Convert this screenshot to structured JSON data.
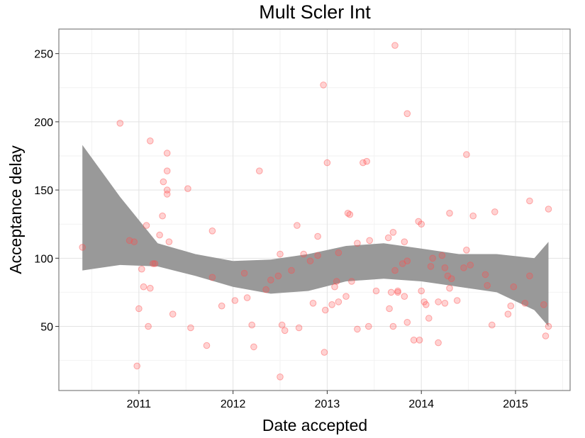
{
  "chart_data": {
    "type": "scatter",
    "title": "Mult Scler Int",
    "xlabel": "Date accepted",
    "ylabel": "Acceptance delay",
    "xlim": [
      2010.15,
      2015.58
    ],
    "ylim": [
      3,
      268
    ],
    "x_ticks": [
      2011,
      2012,
      2013,
      2014,
      2015
    ],
    "y_ticks": [
      50,
      100,
      150,
      200,
      250
    ],
    "grid": true,
    "point_color": "#ff4d4d",
    "band_color": "#999999",
    "points": [
      [
        2010.4,
        108
      ],
      [
        2010.8,
        199
      ],
      [
        2010.9,
        113
      ],
      [
        2010.95,
        112
      ],
      [
        2010.98,
        21
      ],
      [
        2011.0,
        63
      ],
      [
        2011.03,
        92
      ],
      [
        2011.05,
        79
      ],
      [
        2011.08,
        124
      ],
      [
        2011.1,
        50
      ],
      [
        2011.12,
        186
      ],
      [
        2011.12,
        78
      ],
      [
        2011.15,
        96
      ],
      [
        2011.17,
        96
      ],
      [
        2011.22,
        117
      ],
      [
        2011.25,
        131
      ],
      [
        2011.26,
        156
      ],
      [
        2011.3,
        177
      ],
      [
        2011.3,
        164
      ],
      [
        2011.3,
        150
      ],
      [
        2011.3,
        147
      ],
      [
        2011.32,
        112
      ],
      [
        2011.36,
        59
      ],
      [
        2011.52,
        151
      ],
      [
        2011.55,
        49
      ],
      [
        2011.72,
        36
      ],
      [
        2011.78,
        120
      ],
      [
        2011.78,
        86
      ],
      [
        2011.88,
        65
      ],
      [
        2012.02,
        69
      ],
      [
        2012.12,
        89
      ],
      [
        2012.15,
        71
      ],
      [
        2012.2,
        51
      ],
      [
        2012.22,
        35
      ],
      [
        2012.28,
        164
      ],
      [
        2012.35,
        77
      ],
      [
        2012.4,
        84
      ],
      [
        2012.48,
        87
      ],
      [
        2012.5,
        103
      ],
      [
        2012.52,
        51
      ],
      [
        2012.55,
        47
      ],
      [
        2012.5,
        13
      ],
      [
        2012.62,
        91
      ],
      [
        2012.68,
        124
      ],
      [
        2012.7,
        49
      ],
      [
        2012.75,
        103
      ],
      [
        2012.82,
        98
      ],
      [
        2012.85,
        67
      ],
      [
        2012.9,
        102
      ],
      [
        2012.9,
        116
      ],
      [
        2012.96,
        227
      ],
      [
        2012.98,
        62
      ],
      [
        2012.97,
        31
      ],
      [
        2013.0,
        170
      ],
      [
        2013.05,
        66
      ],
      [
        2013.08,
        79
      ],
      [
        2013.1,
        83
      ],
      [
        2013.12,
        104
      ],
      [
        2013.12,
        68
      ],
      [
        2013.2,
        72
      ],
      [
        2013.22,
        133
      ],
      [
        2013.24,
        132
      ],
      [
        2013.26,
        83
      ],
      [
        2013.32,
        111
      ],
      [
        2013.32,
        48
      ],
      [
        2013.38,
        170
      ],
      [
        2013.42,
        171
      ],
      [
        2013.44,
        50
      ],
      [
        2013.45,
        113
      ],
      [
        2013.52,
        76
      ],
      [
        2013.65,
        115
      ],
      [
        2013.66,
        63
      ],
      [
        2013.68,
        75
      ],
      [
        2013.7,
        50
      ],
      [
        2013.7,
        119
      ],
      [
        2013.72,
        91
      ],
      [
        2013.75,
        76
      ],
      [
        2013.75,
        75
      ],
      [
        2013.8,
        96
      ],
      [
        2013.82,
        72
      ],
      [
        2013.82,
        112
      ],
      [
        2013.85,
        98
      ],
      [
        2013.72,
        256
      ],
      [
        2013.85,
        206
      ],
      [
        2013.85,
        53
      ],
      [
        2013.92,
        40
      ],
      [
        2013.98,
        40
      ],
      [
        2013.97,
        127
      ],
      [
        2014.0,
        125
      ],
      [
        2014.0,
        76
      ],
      [
        2014.03,
        68
      ],
      [
        2014.05,
        66
      ],
      [
        2014.08,
        56
      ],
      [
        2014.1,
        94
      ],
      [
        2014.12,
        100
      ],
      [
        2014.18,
        68
      ],
      [
        2014.18,
        38
      ],
      [
        2014.22,
        102
      ],
      [
        2014.25,
        93
      ],
      [
        2014.25,
        67
      ],
      [
        2014.28,
        87
      ],
      [
        2014.3,
        133
      ],
      [
        2014.3,
        78
      ],
      [
        2014.32,
        85
      ],
      [
        2014.38,
        69
      ],
      [
        2014.45,
        93
      ],
      [
        2014.48,
        106
      ],
      [
        2014.48,
        176
      ],
      [
        2014.52,
        95
      ],
      [
        2014.55,
        131
      ],
      [
        2014.68,
        88
      ],
      [
        2014.7,
        80
      ],
      [
        2014.75,
        51
      ],
      [
        2014.78,
        134
      ],
      [
        2014.92,
        59
      ],
      [
        2014.95,
        65
      ],
      [
        2014.98,
        79
      ],
      [
        2015.1,
        67
      ],
      [
        2015.15,
        142
      ],
      [
        2015.15,
        87
      ],
      [
        2015.3,
        66
      ],
      [
        2015.32,
        43
      ],
      [
        2015.35,
        136
      ],
      [
        2015.35,
        50
      ]
    ],
    "band": {
      "x": [
        2010.4,
        2010.8,
        2011.2,
        2011.6,
        2012.0,
        2012.4,
        2012.8,
        2013.2,
        2013.6,
        2014.0,
        2014.4,
        2014.8,
        2015.2,
        2015.35
      ],
      "lower": [
        91,
        95,
        94,
        87,
        79,
        74,
        76,
        83,
        85,
        83,
        79,
        75,
        62,
        50
      ],
      "upper": [
        183,
        145,
        111,
        103,
        98,
        99,
        103,
        109,
        111,
        107,
        103,
        103,
        100,
        112
      ]
    }
  }
}
